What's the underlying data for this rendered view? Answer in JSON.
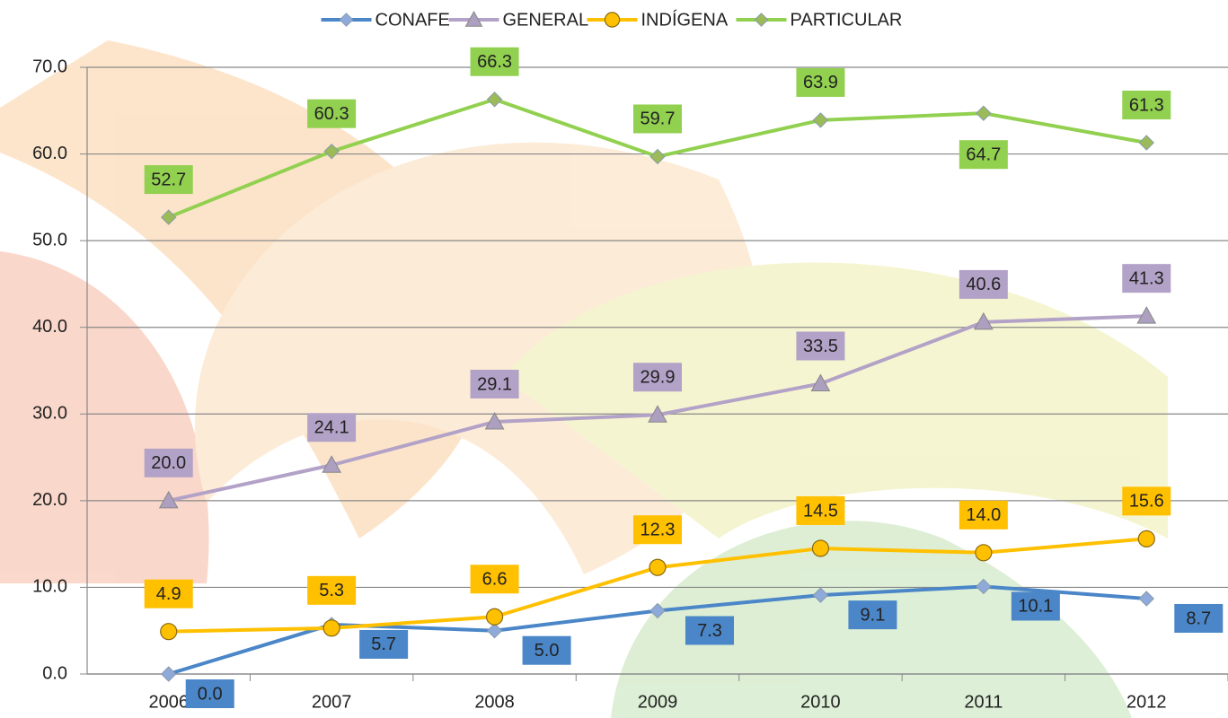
{
  "chart_data": {
    "type": "line",
    "categories": [
      "2006",
      "2007",
      "2008",
      "2009",
      "2010",
      "2011",
      "2012"
    ],
    "series": [
      {
        "name": "CONAFE",
        "color": "#4a86c8",
        "marker": "diamond",
        "values": [
          0,
          5.7,
          5.0,
          7.3,
          9.1,
          10.1,
          8.7
        ],
        "value_labels": [
          "0.0",
          "5.7",
          "5.0",
          "7.3",
          "9.1",
          "10.1",
          "8.7"
        ]
      },
      {
        "name": "GENERAL",
        "color": "#b3a2c7",
        "marker": "triangle",
        "values": [
          20.0,
          24.1,
          29.1,
          29.9,
          33.5,
          40.6,
          41.3
        ],
        "value_labels": [
          "20.0",
          "24.1",
          "29.1",
          "29.9",
          "33.5",
          "40.6",
          "41.3"
        ]
      },
      {
        "name": "INDÍGENA",
        "color": "#ffc000",
        "marker": "circle",
        "values": [
          4.9,
          5.3,
          6.6,
          12.3,
          14.5,
          14.0,
          15.6
        ],
        "value_labels": [
          "4.9",
          "5.3",
          "6.6",
          "12.3",
          "14.5",
          "14.0",
          "15.6"
        ]
      },
      {
        "name": "PARTICULAR",
        "color": "#92d050",
        "marker": "diamond",
        "values": [
          52.7,
          60.3,
          66.3,
          59.7,
          63.9,
          64.7,
          61.3
        ],
        "value_labels": [
          "52.7",
          "60.3",
          "66.3",
          "59.7",
          "63.9",
          "64.7",
          "61.3"
        ]
      }
    ],
    "ylim": [
      0,
      70
    ],
    "yticks": [
      {
        "value": 0,
        "label": "0.0"
      },
      {
        "value": 10,
        "label": "10.0"
      },
      {
        "value": 20,
        "label": "20.0"
      },
      {
        "value": 30,
        "label": "30.0"
      },
      {
        "value": 40,
        "label": "40.0"
      },
      {
        "value": 50,
        "label": "50.0"
      },
      {
        "value": 60,
        "label": "60.0"
      },
      {
        "value": 70,
        "label": "70.0"
      }
    ],
    "grid": true,
    "legend": "top"
  }
}
